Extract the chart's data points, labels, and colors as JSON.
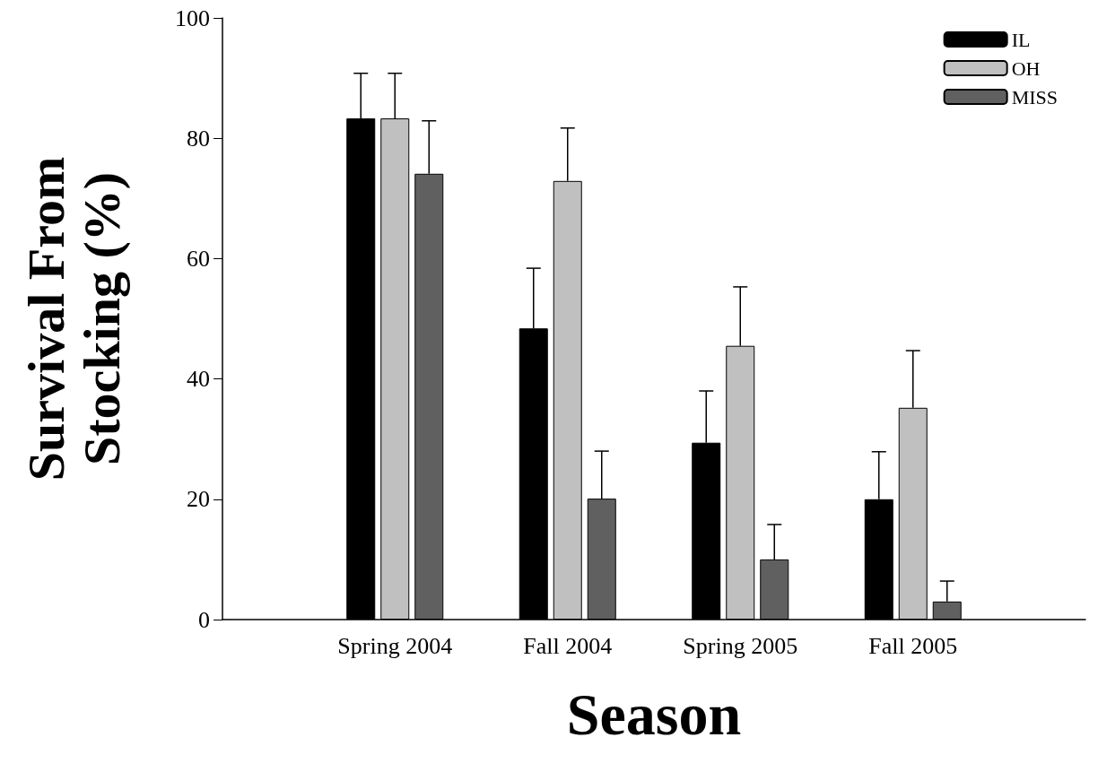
{
  "chart_data": {
    "type": "bar",
    "xlabel": "Season",
    "ylabel": "Survival From Stocking (%)",
    "categories": [
      "Spring 2004",
      "Fall 2004",
      "Spring 2005",
      "Fall 2005"
    ],
    "series": [
      {
        "name": "IL",
        "color": "#000000",
        "values": [
          83.3,
          48.4,
          29.4,
          20.0
        ],
        "errors": [
          [
            83.3,
            90.8
          ],
          [
            48.4,
            58.4
          ],
          [
            29.4,
            38.0
          ],
          [
            20.0,
            27.9
          ]
        ]
      },
      {
        "name": "OH",
        "color": "#c0c0c0",
        "values": [
          83.3,
          72.9,
          45.5,
          35.2
        ],
        "errors": [
          [
            83.3,
            90.8
          ],
          [
            72.9,
            81.7
          ],
          [
            45.5,
            55.3
          ],
          [
            35.2,
            44.7
          ]
        ]
      },
      {
        "name": "MISS",
        "color": "#606060",
        "values": [
          74.1,
          20.1,
          10.0,
          3.0
        ],
        "errors": [
          [
            74.1,
            82.9
          ],
          [
            20.1,
            28.0
          ],
          [
            10.0,
            15.8
          ],
          [
            3.0,
            6.4
          ]
        ]
      }
    ],
    "ylim": [
      0,
      100
    ],
    "yticks": [
      0,
      20,
      40,
      60,
      80,
      100
    ],
    "grid": false,
    "legend": "top right"
  }
}
